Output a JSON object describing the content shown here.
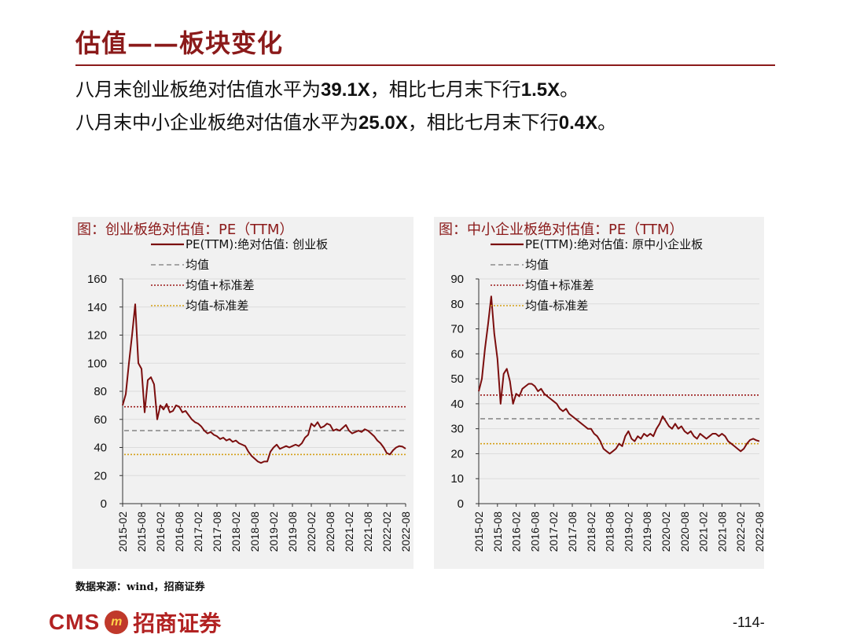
{
  "title": "估值——板块变化",
  "subtitle_lines": [
    {
      "pre": "八月末创业板绝对估值水平为",
      "num1": "39.1X",
      "mid": "，相比七月末下行",
      "num2": "1.5X",
      "post": "。"
    },
    {
      "pre": "八月末中小企业板绝对估值水平为",
      "num1": "25.0X",
      "mid": "，相比七月末下行",
      "num2": "0.4X",
      "post": "。"
    }
  ],
  "source": "数据来源：wind，招商证券",
  "footer": {
    "logo_text": "CMS",
    "badge": "m",
    "company": "招商证券",
    "page": "-114-"
  },
  "colors": {
    "series": "#7b0e0e",
    "mean": "#8c8c8c",
    "mean_plus": "#9b1b1b",
    "mean_minus": "#d4a017",
    "accent": "#8b1a1a"
  },
  "chart_data": [
    {
      "type": "line",
      "title": "图：创业板绝对估值：PE（TTM）",
      "legend": [
        "PE(TTM):绝对估值: 创业板",
        "均值",
        "均值+标准差",
        "均值-标准差"
      ],
      "legend_position": "top-center",
      "x_ticks": [
        "2015-02",
        "2015-08",
        "2016-02",
        "2016-08",
        "2017-02",
        "2017-08",
        "2018-02",
        "2018-08",
        "2019-02",
        "2019-08",
        "2020-02",
        "2020-08",
        "2021-02",
        "2021-08",
        "2022-02",
        "2022-08"
      ],
      "ylim": [
        0,
        160
      ],
      "y_ticks": [
        0,
        20,
        40,
        60,
        80,
        100,
        120,
        140,
        160
      ],
      "grid": true,
      "mean": 52,
      "mean_plus": 69,
      "mean_minus": 35,
      "series": [
        {
          "name": "PE(TTM):绝对估值: 创业板",
          "x": [
            "2015-02",
            "2015-03",
            "2015-04",
            "2015-05",
            "2015-06",
            "2015-07",
            "2015-08",
            "2015-09",
            "2015-10",
            "2015-11",
            "2015-12",
            "2016-01",
            "2016-02",
            "2016-03",
            "2016-04",
            "2016-05",
            "2016-06",
            "2016-07",
            "2016-08",
            "2016-09",
            "2016-10",
            "2016-11",
            "2016-12",
            "2017-01",
            "2017-02",
            "2017-03",
            "2017-04",
            "2017-05",
            "2017-06",
            "2017-07",
            "2017-08",
            "2017-09",
            "2017-10",
            "2017-11",
            "2017-12",
            "2018-01",
            "2018-02",
            "2018-03",
            "2018-04",
            "2018-05",
            "2018-06",
            "2018-07",
            "2018-08",
            "2018-09",
            "2018-10",
            "2018-11",
            "2018-12",
            "2019-01",
            "2019-02",
            "2019-03",
            "2019-04",
            "2019-05",
            "2019-06",
            "2019-07",
            "2019-08",
            "2019-09",
            "2019-10",
            "2019-11",
            "2019-12",
            "2020-01",
            "2020-02",
            "2020-03",
            "2020-04",
            "2020-05",
            "2020-06",
            "2020-07",
            "2020-08",
            "2020-09",
            "2020-10",
            "2020-11",
            "2020-12",
            "2021-01",
            "2021-02",
            "2021-03",
            "2021-04",
            "2021-05",
            "2021-06",
            "2021-07",
            "2021-08",
            "2021-09",
            "2021-10",
            "2021-11",
            "2021-12",
            "2022-01",
            "2022-02",
            "2022-03",
            "2022-04",
            "2022-05",
            "2022-06",
            "2022-07",
            "2022-08"
          ],
          "values": [
            70,
            78,
            100,
            120,
            142,
            100,
            96,
            65,
            88,
            90,
            85,
            60,
            70,
            67,
            71,
            65,
            66,
            70,
            69,
            65,
            66,
            63,
            60,
            58,
            57,
            55,
            52,
            50,
            51,
            49,
            48,
            46,
            47,
            45,
            46,
            44,
            45,
            43,
            42,
            41,
            37,
            34,
            32,
            30,
            29,
            30,
            30,
            37,
            40,
            42,
            39,
            40,
            41,
            40,
            41,
            42,
            41,
            43,
            47,
            49,
            57,
            55,
            58,
            54,
            55,
            57,
            56,
            52,
            53,
            52,
            54,
            56,
            52,
            50,
            51,
            52,
            51,
            53,
            52,
            50,
            48,
            45,
            43,
            40,
            36,
            35,
            38,
            40,
            41,
            40.6,
            39.1
          ]
        }
      ]
    },
    {
      "type": "line",
      "title": "图：中小企业板绝对估值：PE（TTM）",
      "legend": [
        "PE(TTM):绝对估值: 原中小企业板",
        "均值",
        "均值+标准差",
        "均值-标准差"
      ],
      "legend_position": "top-center",
      "x_ticks": [
        "2015-02",
        "2015-08",
        "2016-02",
        "2016-08",
        "2017-02",
        "2017-08",
        "2018-02",
        "2018-08",
        "2019-02",
        "2019-08",
        "2020-02",
        "2020-08",
        "2021-02",
        "2021-08",
        "2022-02",
        "2022-08"
      ],
      "ylim": [
        0,
        90
      ],
      "y_ticks": [
        0,
        10,
        20,
        30,
        40,
        50,
        60,
        70,
        80,
        90
      ],
      "grid": true,
      "mean": 34,
      "mean_plus": 43.5,
      "mean_minus": 24,
      "series": [
        {
          "name": "PE(TTM):绝对估值: 原中小企业板",
          "x": [
            "2015-02",
            "2015-03",
            "2015-04",
            "2015-05",
            "2015-06",
            "2015-07",
            "2015-08",
            "2015-09",
            "2015-10",
            "2015-11",
            "2015-12",
            "2016-01",
            "2016-02",
            "2016-03",
            "2016-04",
            "2016-05",
            "2016-06",
            "2016-07",
            "2016-08",
            "2016-09",
            "2016-10",
            "2016-11",
            "2016-12",
            "2017-01",
            "2017-02",
            "2017-03",
            "2017-04",
            "2017-05",
            "2017-06",
            "2017-07",
            "2017-08",
            "2017-09",
            "2017-10",
            "2017-11",
            "2017-12",
            "2018-01",
            "2018-02",
            "2018-03",
            "2018-04",
            "2018-05",
            "2018-06",
            "2018-07",
            "2018-08",
            "2018-09",
            "2018-10",
            "2018-11",
            "2018-12",
            "2019-01",
            "2019-02",
            "2019-03",
            "2019-04",
            "2019-05",
            "2019-06",
            "2019-07",
            "2019-08",
            "2019-09",
            "2019-10",
            "2019-11",
            "2019-12",
            "2020-01",
            "2020-02",
            "2020-03",
            "2020-04",
            "2020-05",
            "2020-06",
            "2020-07",
            "2020-08",
            "2020-09",
            "2020-10",
            "2020-11",
            "2020-12",
            "2021-01",
            "2021-02",
            "2021-03",
            "2021-04",
            "2021-05",
            "2021-06",
            "2021-07",
            "2021-08",
            "2021-09",
            "2021-10",
            "2021-11",
            "2021-12",
            "2022-01",
            "2022-02",
            "2022-03",
            "2022-04",
            "2022-05",
            "2022-06",
            "2022-07",
            "2022-08"
          ],
          "values": [
            45,
            50,
            62,
            72,
            83,
            68,
            58,
            40,
            52,
            54,
            49,
            40,
            44,
            43,
            46,
            47,
            48,
            48,
            47,
            45,
            46,
            44,
            43,
            42,
            41,
            40,
            38,
            37,
            38,
            36,
            35,
            34,
            33,
            32,
            31,
            30,
            30,
            28,
            27,
            25,
            22,
            21,
            20,
            21,
            22,
            24,
            23,
            27,
            29,
            26,
            25,
            27,
            26,
            28,
            27,
            28,
            27,
            30,
            32,
            35,
            33,
            31,
            30,
            32,
            30,
            31,
            29,
            28,
            29,
            27,
            26,
            28,
            27,
            26,
            27,
            28,
            28,
            27,
            28,
            27,
            25,
            24,
            23,
            22,
            21,
            22,
            24,
            25.5,
            26,
            25.4,
            25.0
          ]
        }
      ]
    }
  ]
}
